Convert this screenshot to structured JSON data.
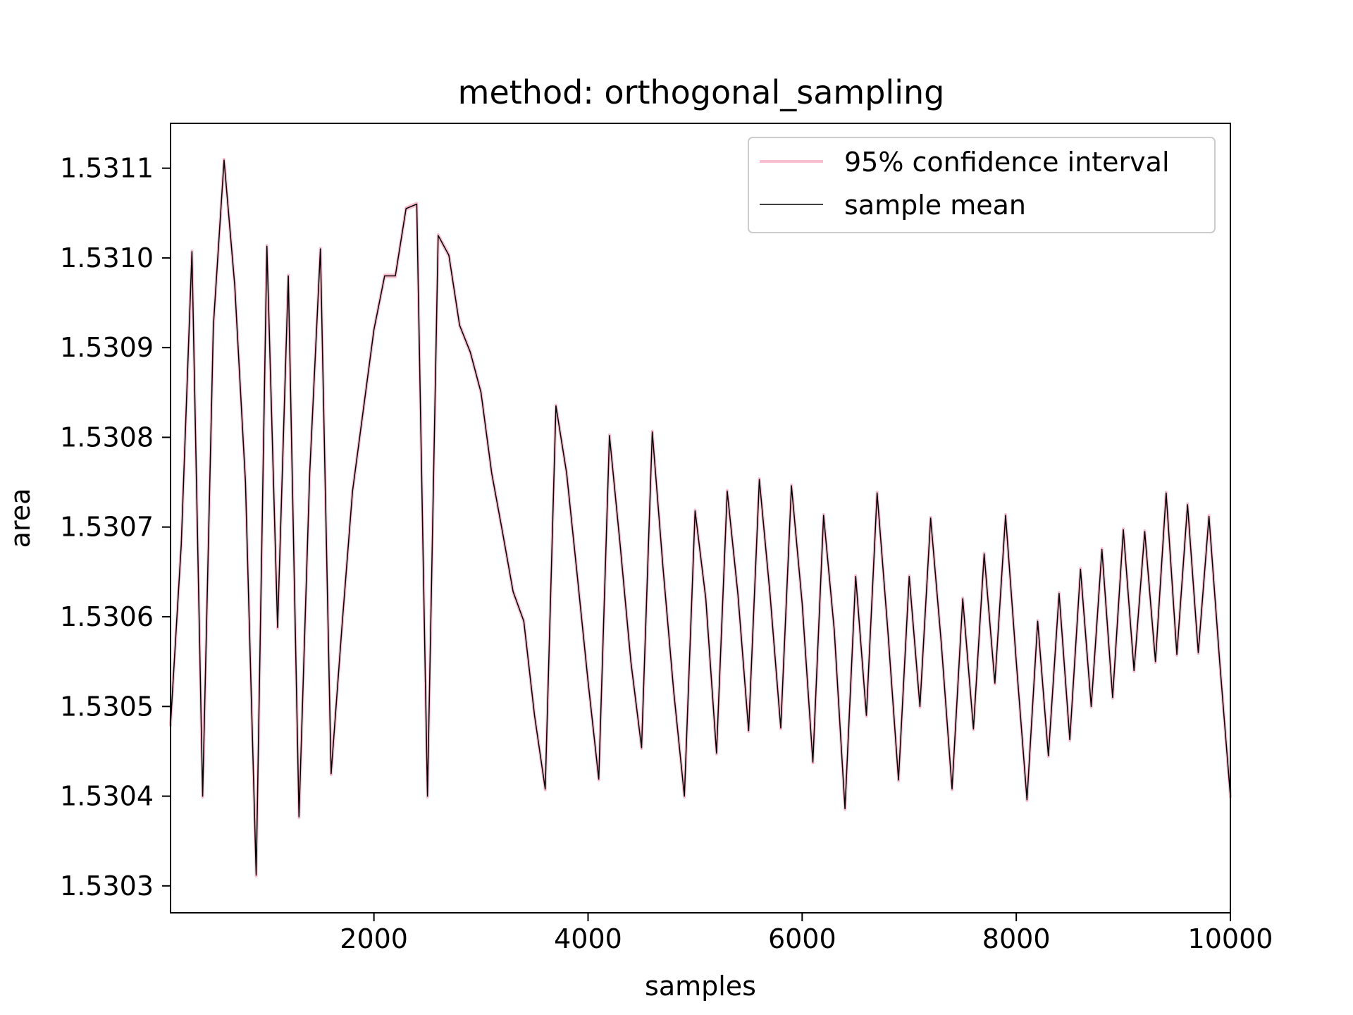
{
  "chart_data": {
    "type": "line",
    "title": "method: orthogonal_sampling",
    "xlabel": "samples",
    "ylabel": "area",
    "xlim": [
      100,
      10000
    ],
    "ylim": [
      1.53027,
      1.53115
    ],
    "xticks": [
      2000,
      4000,
      6000,
      8000,
      10000
    ],
    "xtick_labels": [
      "2000",
      "4000",
      "6000",
      "8000",
      "10000"
    ],
    "yticks": [
      1.5303,
      1.5304,
      1.5305,
      1.5306,
      1.5307,
      1.5308,
      1.5309,
      1.531,
      1.5311
    ],
    "ytick_labels": [
      "1.5303",
      "1.5304",
      "1.5305",
      "1.5306",
      "1.5307",
      "1.5308",
      "1.5309",
      "1.5310",
      "1.5311"
    ],
    "grid": false,
    "legend_position": "upper right",
    "colors": {
      "ci": "#f7bfcf",
      "mean": "#000000",
      "axes": "#000000",
      "legend_border": "#cccccc"
    },
    "x": [
      100,
      200,
      300,
      400,
      500,
      600,
      700,
      800,
      900,
      1000,
      1100,
      1200,
      1300,
      1400,
      1500,
      1600,
      1700,
      1800,
      1900,
      2000,
      2100,
      2200,
      2300,
      2400,
      2500,
      2600,
      2700,
      2800,
      2900,
      3000,
      3100,
      3200,
      3300,
      3400,
      3500,
      3600,
      3700,
      3800,
      3900,
      4000,
      4100,
      4200,
      4300,
      4400,
      4500,
      4600,
      4700,
      4800,
      4900,
      5000,
      5100,
      5200,
      5300,
      5400,
      5500,
      5600,
      5700,
      5800,
      5900,
      6000,
      6100,
      6200,
      6300,
      6400,
      6500,
      6600,
      6700,
      6800,
      6900,
      7000,
      7100,
      7200,
      7300,
      7400,
      7500,
      7600,
      7700,
      7800,
      7900,
      8000,
      8100,
      8200,
      8300,
      8400,
      8500,
      8600,
      8700,
      8800,
      8900,
      9000,
      9100,
      9200,
      9300,
      9400,
      9500,
      9600,
      9700,
      9800,
      9900,
      10000
    ],
    "series": [
      {
        "name": "95% confidence interval",
        "style": "band",
        "lower": [
          1.530479,
          1.530679,
          1.531006,
          1.530399,
          1.530923,
          1.531108,
          1.530968,
          1.530749,
          1.530311,
          1.531012,
          1.530587,
          1.530979,
          1.530376,
          1.530759,
          1.531009,
          1.530424,
          1.530586,
          1.530739,
          1.530829,
          1.530919,
          1.530979,
          1.530979,
          1.531054,
          1.531059,
          1.530399,
          1.531024,
          1.531002,
          1.530924,
          1.530894,
          1.530849,
          1.530759,
          1.530694,
          1.530627,
          1.530594,
          1.530489,
          1.530407,
          1.530834,
          1.530759,
          1.530644,
          1.530527,
          1.530418,
          1.530801,
          1.530679,
          1.530549,
          1.530453,
          1.530805,
          1.530654,
          1.530516,
          1.530399,
          1.530717,
          1.530619,
          1.530447,
          1.530739,
          1.530624,
          1.530472,
          1.530752,
          1.530624,
          1.530475,
          1.530745,
          1.530614,
          1.530437,
          1.530712,
          1.530584,
          1.530385,
          1.530644,
          1.530489,
          1.530737,
          1.530584,
          1.530417,
          1.530644,
          1.530499,
          1.530709,
          1.530569,
          1.530407,
          1.530619,
          1.530474,
          1.530669,
          1.530525,
          1.530712,
          1.530549,
          1.530395,
          1.530594,
          1.530444,
          1.530625,
          1.530462,
          1.530652,
          1.530499,
          1.530674,
          1.530509,
          1.530696,
          1.530539,
          1.530694,
          1.530549,
          1.530737,
          1.530557,
          1.530724,
          1.530559,
          1.530711,
          1.530549,
          1.530399
        ],
        "upper": [
          1.530481,
          1.530681,
          1.531008,
          1.530401,
          1.530925,
          1.53111,
          1.53097,
          1.530751,
          1.530313,
          1.531014,
          1.530589,
          1.530981,
          1.530378,
          1.530761,
          1.531011,
          1.530426,
          1.530588,
          1.530741,
          1.530831,
          1.530921,
          1.530981,
          1.530981,
          1.531056,
          1.531061,
          1.530401,
          1.531026,
          1.531004,
          1.530926,
          1.530896,
          1.530851,
          1.530761,
          1.530696,
          1.530629,
          1.530596,
          1.530491,
          1.530409,
          1.530836,
          1.530761,
          1.530646,
          1.530529,
          1.53042,
          1.530803,
          1.530681,
          1.530551,
          1.530455,
          1.530807,
          1.530656,
          1.530518,
          1.530401,
          1.530719,
          1.530621,
          1.530449,
          1.530741,
          1.530626,
          1.530474,
          1.530754,
          1.530626,
          1.530477,
          1.530747,
          1.530616,
          1.530439,
          1.530714,
          1.530586,
          1.530387,
          1.530646,
          1.530491,
          1.530739,
          1.530586,
          1.530419,
          1.530646,
          1.530501,
          1.530711,
          1.530571,
          1.530409,
          1.530621,
          1.530476,
          1.530671,
          1.530527,
          1.530714,
          1.530551,
          1.530397,
          1.530596,
          1.530446,
          1.530627,
          1.530464,
          1.530654,
          1.530501,
          1.530676,
          1.530511,
          1.530698,
          1.530541,
          1.530696,
          1.530551,
          1.530739,
          1.530559,
          1.530726,
          1.530561,
          1.530713,
          1.530551,
          1.530401
        ]
      },
      {
        "name": "sample mean",
        "style": "line",
        "values": [
          1.53048,
          1.53068,
          1.531007,
          1.5304,
          1.530924,
          1.531109,
          1.530969,
          1.53075,
          1.530312,
          1.531013,
          1.530588,
          1.53098,
          1.530377,
          1.53076,
          1.53101,
          1.530425,
          1.530587,
          1.53074,
          1.53083,
          1.53092,
          1.53098,
          1.53098,
          1.531055,
          1.53106,
          1.5304,
          1.531025,
          1.531003,
          1.530925,
          1.530895,
          1.53085,
          1.53076,
          1.530695,
          1.530628,
          1.530595,
          1.53049,
          1.530408,
          1.530835,
          1.53076,
          1.530645,
          1.530528,
          1.530419,
          1.530802,
          1.53068,
          1.53055,
          1.530454,
          1.530806,
          1.530655,
          1.530517,
          1.5304,
          1.530718,
          1.53062,
          1.530448,
          1.53074,
          1.530625,
          1.530473,
          1.530753,
          1.530625,
          1.530476,
          1.530746,
          1.530615,
          1.530438,
          1.530713,
          1.530585,
          1.530386,
          1.530645,
          1.53049,
          1.530738,
          1.530585,
          1.530418,
          1.530645,
          1.5305,
          1.53071,
          1.53057,
          1.530408,
          1.53062,
          1.530475,
          1.53067,
          1.530526,
          1.530713,
          1.53055,
          1.530396,
          1.530595,
          1.530445,
          1.530626,
          1.530463,
          1.530653,
          1.5305,
          1.530675,
          1.53051,
          1.530697,
          1.53054,
          1.530695,
          1.53055,
          1.530738,
          1.530558,
          1.530725,
          1.53056,
          1.530712,
          1.53055,
          1.5304
        ]
      }
    ]
  }
}
